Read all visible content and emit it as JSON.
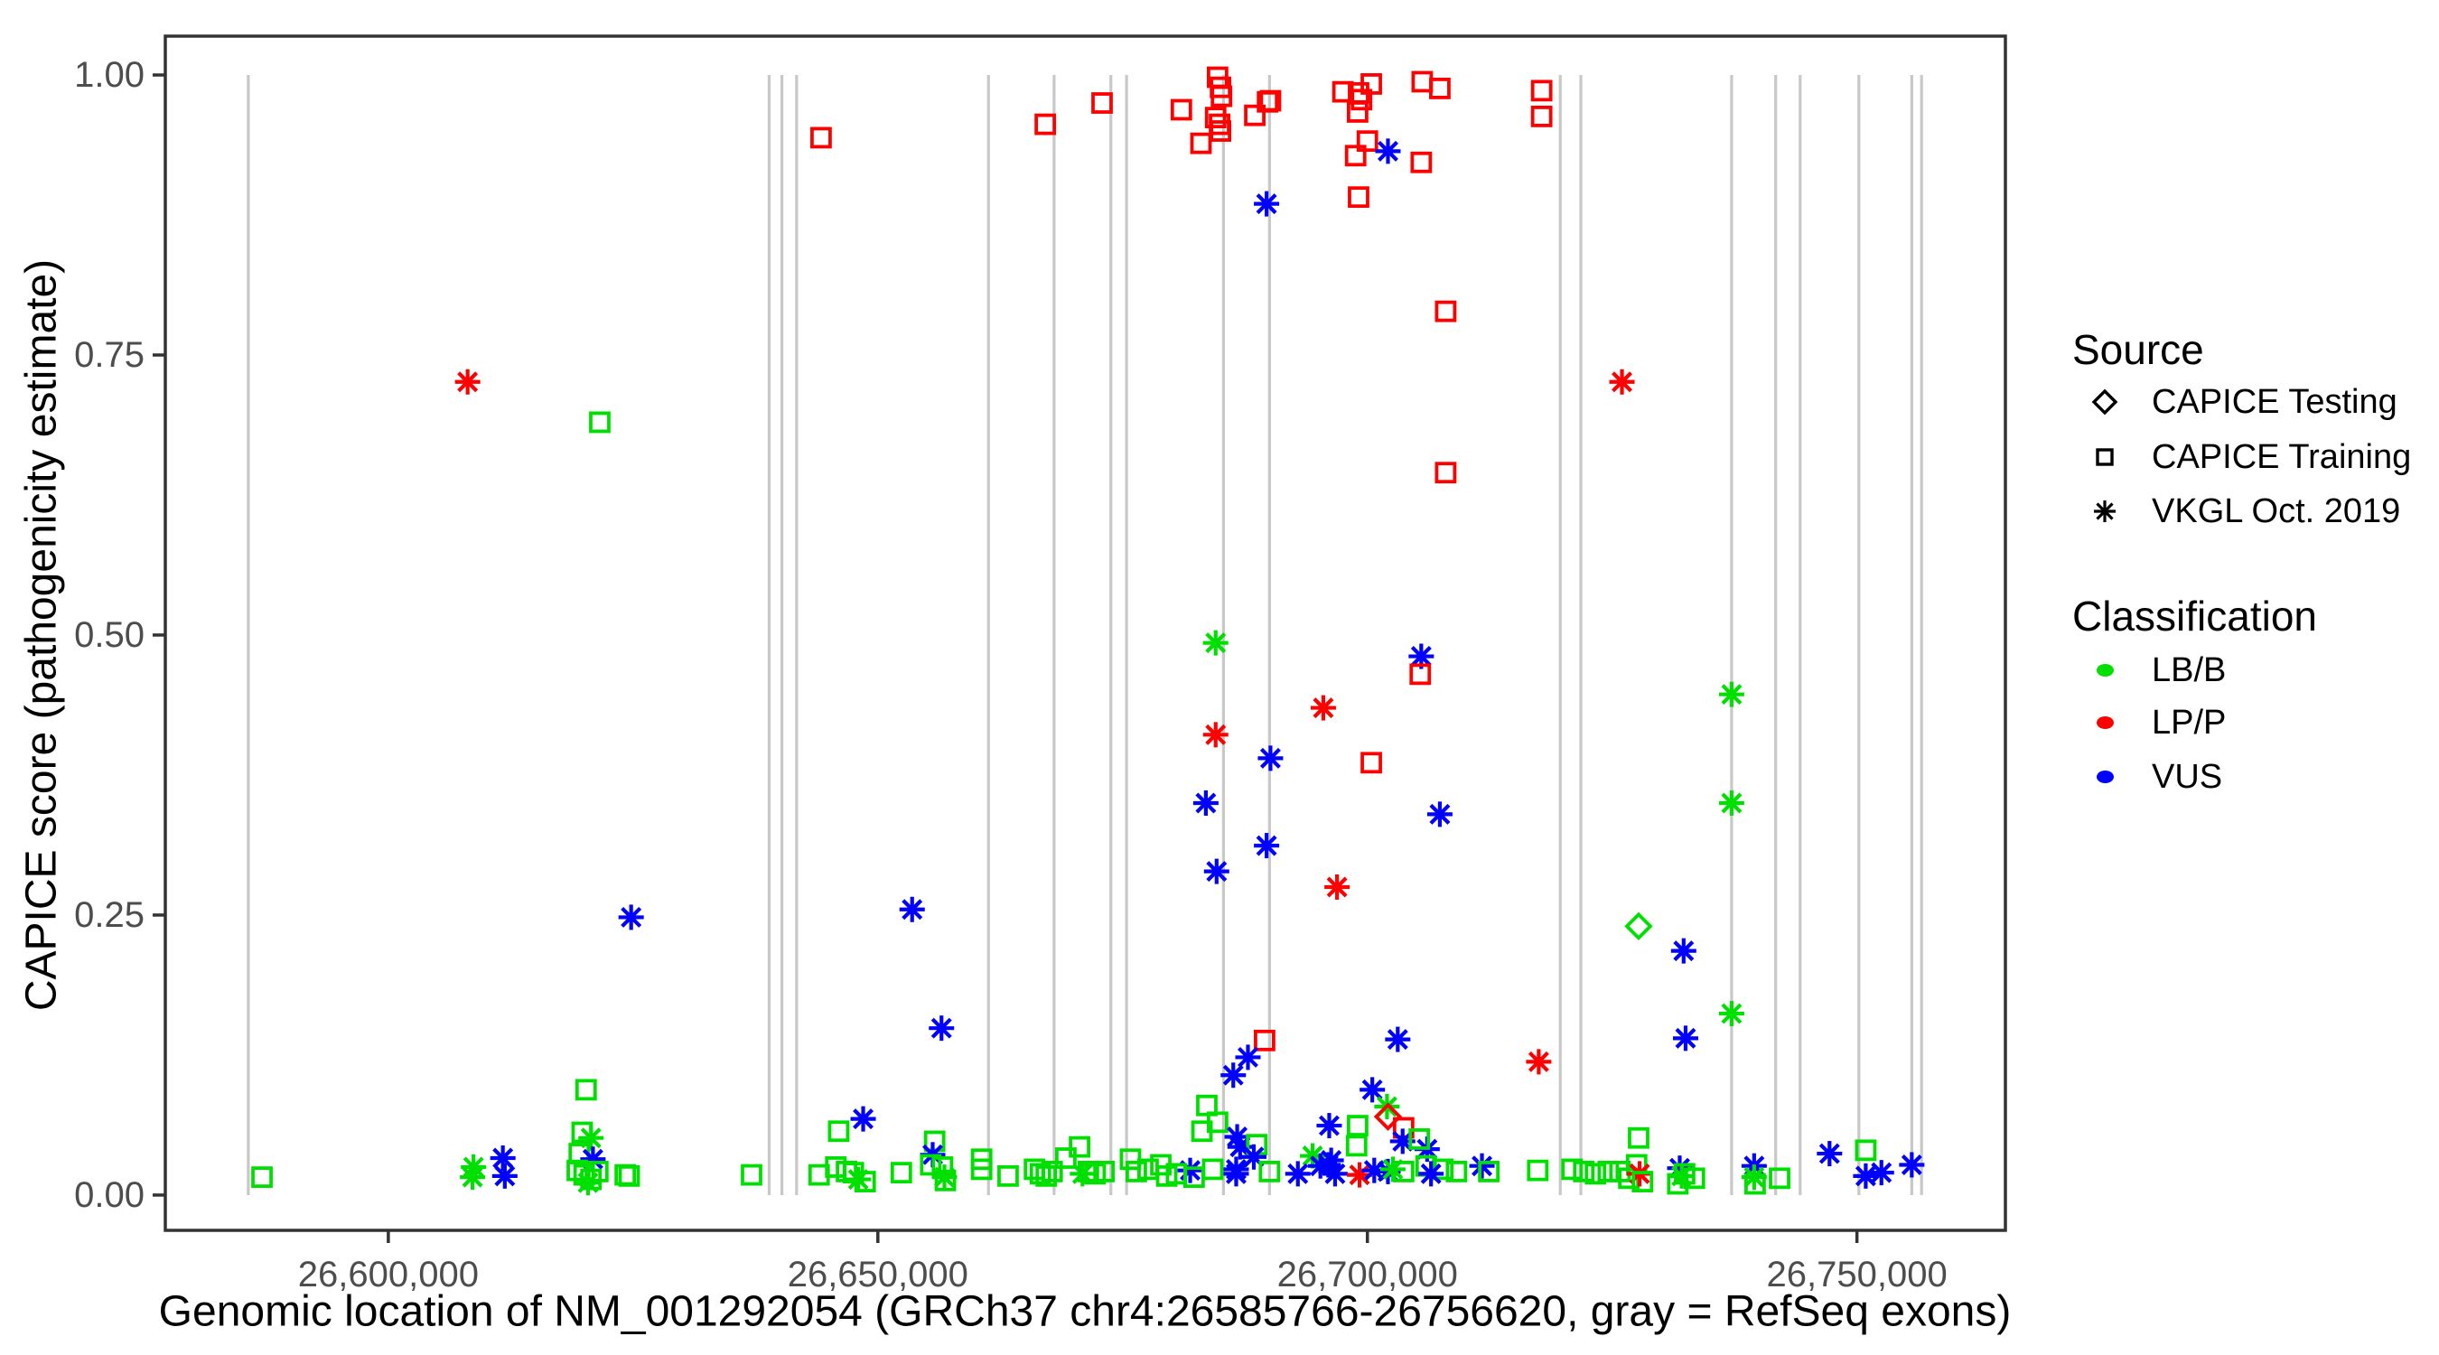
{
  "chart_data": {
    "type": "scatter",
    "xlabel": "Genomic location of NM_001292054 (GRCh37 chr4:26585766-26756620, gray = RefSeq exons)",
    "ylabel": "CAPICE score (pathogenicity estimate)",
    "x_domain": [
      26577223,
      26765163
    ],
    "y_domain": [
      -0.0315,
      1.0347
    ],
    "grid": false,
    "x_ticks": [
      {
        "v": 26600000,
        "label": "26,600,000"
      },
      {
        "v": 26650000,
        "label": "26,650,000"
      },
      {
        "v": 26700000,
        "label": "26,700,000"
      },
      {
        "v": 26750000,
        "label": "26,750,000"
      }
    ],
    "y_ticks": [
      {
        "v": 0.0,
        "label": "0.00"
      },
      {
        "v": 0.25,
        "label": "0.25"
      },
      {
        "v": 0.5,
        "label": "0.50"
      },
      {
        "v": 0.75,
        "label": "0.75"
      },
      {
        "v": 1.0,
        "label": "1.00"
      }
    ],
    "exon_color": "#c8c8c8",
    "exons": [
      26585700,
      26638900,
      26640200,
      26641700,
      26661300,
      26668000,
      26673800,
      26675400,
      26685300,
      26690000,
      26719700,
      26721800,
      26737200,
      26741700,
      26744200,
      26750200,
      26755600,
      26756600
    ],
    "legend": {
      "source": {
        "title": "Source",
        "items": [
          {
            "label": "CAPICE Testing",
            "marker": "diamond"
          },
          {
            "label": "CAPICE Training",
            "marker": "square"
          },
          {
            "label": "VKGL Oct. 2019",
            "marker": "asterisk"
          }
        ]
      },
      "classification": {
        "title": "Classification",
        "items": [
          {
            "label": "LB/B",
            "color": "#00e000"
          },
          {
            "label": "LP/P",
            "color": "#ff0000"
          },
          {
            "label": "VUS",
            "color": "#0000ff"
          }
        ]
      }
    },
    "colors": {
      "g": "#00e000",
      "r": "#ff0000",
      "b": "#0000ff"
    },
    "marker_codes": {
      "s": "CAPICE Training (square)",
      "a": "VKGL Oct. 2019 (asterisk)",
      "d": "CAPICE Testing (diamond)"
    },
    "class_codes": {
      "g": "LB/B",
      "r": "LP/P",
      "b": "VUS"
    },
    "points": [
      [
        26608100,
        0.726,
        "a",
        "r"
      ],
      [
        26621600,
        0.69,
        "s",
        "g"
      ],
      [
        26644200,
        0.944,
        "s",
        "r"
      ],
      [
        26667100,
        0.956,
        "s",
        "r"
      ],
      [
        26672900,
        0.975,
        "s",
        "r"
      ],
      [
        26681000,
        0.969,
        "s",
        "r"
      ],
      [
        26683000,
        0.939,
        "s",
        "r"
      ],
      [
        26684700,
        0.998,
        "s",
        "r"
      ],
      [
        26685000,
        0.989,
        "s",
        "r"
      ],
      [
        26685100,
        0.981,
        "s",
        "r"
      ],
      [
        26684500,
        0.962,
        "s",
        "r"
      ],
      [
        26684900,
        0.956,
        "s",
        "r"
      ],
      [
        26685000,
        0.95,
        "s",
        "r"
      ],
      [
        26688500,
        0.964,
        "s",
        "r"
      ],
      [
        26689800,
        0.976,
        "s",
        "r"
      ],
      [
        26690100,
        0.977,
        "s",
        "r"
      ],
      [
        26697500,
        0.985,
        "s",
        "r"
      ],
      [
        26699100,
        0.984,
        "s",
        "r"
      ],
      [
        26700400,
        0.992,
        "s",
        "r"
      ],
      [
        26699400,
        0.978,
        "s",
        "r"
      ],
      [
        26699000,
        0.967,
        "s",
        "r"
      ],
      [
        26705600,
        0.994,
        "s",
        "r"
      ],
      [
        26707400,
        0.988,
        "s",
        "r"
      ],
      [
        26717800,
        0.986,
        "s",
        "r"
      ],
      [
        26717800,
        0.963,
        "s",
        "r"
      ],
      [
        26700000,
        0.941,
        "s",
        "r"
      ],
      [
        26698800,
        0.928,
        "s",
        "r"
      ],
      [
        26702100,
        0.932,
        "a",
        "b"
      ],
      [
        26705500,
        0.922,
        "s",
        "r"
      ],
      [
        26699100,
        0.891,
        "s",
        "r"
      ],
      [
        26689700,
        0.885,
        "a",
        "b"
      ],
      [
        26708000,
        0.789,
        "s",
        "r"
      ],
      [
        26708000,
        0.645,
        "s",
        "r"
      ],
      [
        26726000,
        0.726,
        "a",
        "r"
      ],
      [
        26684500,
        0.493,
        "a",
        "g"
      ],
      [
        26705500,
        0.481,
        "a",
        "b"
      ],
      [
        26705400,
        0.465,
        "s",
        "r"
      ],
      [
        26695500,
        0.435,
        "a",
        "r"
      ],
      [
        26684500,
        0.411,
        "a",
        "r"
      ],
      [
        26690100,
        0.39,
        "a",
        "b"
      ],
      [
        26700400,
        0.386,
        "s",
        "r"
      ],
      [
        26683500,
        0.35,
        "a",
        "b"
      ],
      [
        26707400,
        0.34,
        "a",
        "b"
      ],
      [
        26689700,
        0.312,
        "a",
        "b"
      ],
      [
        26684600,
        0.289,
        "a",
        "b"
      ],
      [
        26696900,
        0.275,
        "a",
        "r"
      ],
      [
        26737200,
        0.447,
        "a",
        "g"
      ],
      [
        26737200,
        0.35,
        "a",
        "g"
      ],
      [
        26727700,
        0.24,
        "d",
        "g"
      ],
      [
        26732300,
        0.218,
        "a",
        "b"
      ],
      [
        26737200,
        0.162,
        "a",
        "g"
      ],
      [
        26732500,
        0.14,
        "a",
        "b"
      ],
      [
        26624800,
        0.248,
        "a",
        "b"
      ],
      [
        26653500,
        0.255,
        "a",
        "b"
      ],
      [
        26656500,
        0.149,
        "a",
        "b"
      ],
      [
        26620200,
        0.094,
        "s",
        "g"
      ],
      [
        26648500,
        0.068,
        "a",
        "b"
      ],
      [
        26646000,
        0.057,
        "s",
        "g"
      ],
      [
        26689500,
        0.138,
        "s",
        "r"
      ],
      [
        26687800,
        0.123,
        "a",
        "b"
      ],
      [
        26686300,
        0.107,
        "a",
        "b"
      ],
      [
        26703100,
        0.139,
        "a",
        "b"
      ],
      [
        26717500,
        0.119,
        "a",
        "r"
      ],
      [
        26700500,
        0.094,
        "a",
        "b"
      ],
      [
        26702000,
        0.079,
        "a",
        "g"
      ],
      [
        26702100,
        0.07,
        "d",
        "r"
      ],
      [
        26703700,
        0.06,
        "s",
        "r"
      ],
      [
        26703600,
        0.048,
        "a",
        "b"
      ],
      [
        26706100,
        0.041,
        "a",
        "b"
      ],
      [
        26705300,
        0.05,
        "s",
        "g"
      ],
      [
        26699000,
        0.062,
        "s",
        "g"
      ],
      [
        26698900,
        0.044,
        "s",
        "g"
      ],
      [
        26696100,
        0.062,
        "a",
        "b"
      ],
      [
        26694400,
        0.035,
        "a",
        "g"
      ],
      [
        26696300,
        0.031,
        "a",
        "b"
      ],
      [
        26683600,
        0.08,
        "s",
        "g"
      ],
      [
        26684700,
        0.065,
        "s",
        "g"
      ],
      [
        26683100,
        0.057,
        "s",
        "g"
      ],
      [
        26686700,
        0.052,
        "a",
        "b"
      ],
      [
        26687000,
        0.043,
        "a",
        "b"
      ],
      [
        26688700,
        0.045,
        "s",
        "g"
      ],
      [
        26688400,
        0.034,
        "a",
        "b"
      ],
      [
        26686600,
        0.023,
        "a",
        "b"
      ],
      [
        26587100,
        0.016,
        "s",
        "g"
      ],
      [
        26608700,
        0.025,
        "a",
        "g"
      ],
      [
        26608600,
        0.016,
        "a",
        "g"
      ],
      [
        26611700,
        0.033,
        "a",
        "b"
      ],
      [
        26611900,
        0.017,
        "a",
        "b"
      ],
      [
        26619800,
        0.056,
        "s",
        "g"
      ],
      [
        26620700,
        0.051,
        "a",
        "g"
      ],
      [
        26619500,
        0.037,
        "s",
        "g"
      ],
      [
        26620900,
        0.032,
        "a",
        "b"
      ],
      [
        26619300,
        0.022,
        "s",
        "g"
      ],
      [
        26620000,
        0.018,
        "s",
        "g"
      ],
      [
        26620700,
        0.014,
        "s",
        "g"
      ],
      [
        26620400,
        0.011,
        "a",
        "g"
      ],
      [
        26621400,
        0.021,
        "s",
        "g"
      ],
      [
        26624200,
        0.018,
        "s",
        "g"
      ],
      [
        26624600,
        0.017,
        "s",
        "g"
      ],
      [
        26637100,
        0.018,
        "s",
        "g"
      ],
      [
        26644000,
        0.018,
        "s",
        "g"
      ],
      [
        26645700,
        0.025,
        "s",
        "g"
      ],
      [
        26646800,
        0.021,
        "s",
        "g"
      ],
      [
        26647500,
        0.02,
        "s",
        "g"
      ],
      [
        26648000,
        0.014,
        "a",
        "g"
      ],
      [
        26648700,
        0.012,
        "s",
        "g"
      ],
      [
        26652400,
        0.02,
        "s",
        "g"
      ],
      [
        26655800,
        0.048,
        "s",
        "g"
      ],
      [
        26655600,
        0.036,
        "a",
        "b"
      ],
      [
        26655400,
        0.027,
        "s",
        "g"
      ],
      [
        26656600,
        0.025,
        "s",
        "g"
      ],
      [
        26656800,
        0.016,
        "a",
        "g"
      ],
      [
        26656900,
        0.013,
        "s",
        "g"
      ],
      [
        26660600,
        0.032,
        "s",
        "g"
      ],
      [
        26660600,
        0.023,
        "s",
        "g"
      ],
      [
        26663300,
        0.017,
        "s",
        "g"
      ],
      [
        26666000,
        0.023,
        "s",
        "g"
      ],
      [
        26666600,
        0.019,
        "s",
        "g"
      ],
      [
        26667200,
        0.017,
        "s",
        "g"
      ],
      [
        26667800,
        0.021,
        "s",
        "g"
      ],
      [
        26669200,
        0.033,
        "s",
        "g"
      ],
      [
        26670600,
        0.043,
        "s",
        "g"
      ],
      [
        26670900,
        0.019,
        "a",
        "g"
      ],
      [
        26671500,
        0.021,
        "s",
        "g"
      ],
      [
        26672200,
        0.019,
        "s",
        "g"
      ],
      [
        26673100,
        0.021,
        "s",
        "g"
      ],
      [
        26675800,
        0.032,
        "s",
        "g"
      ],
      [
        26676400,
        0.021,
        "s",
        "g"
      ],
      [
        26677600,
        0.023,
        "s",
        "g"
      ],
      [
        26678900,
        0.027,
        "s",
        "g"
      ],
      [
        26679500,
        0.017,
        "s",
        "g"
      ],
      [
        26681900,
        0.022,
        "a",
        "b"
      ],
      [
        26680500,
        0.019,
        "s",
        "g"
      ],
      [
        26682300,
        0.016,
        "s",
        "g"
      ],
      [
        26684200,
        0.023,
        "s",
        "g"
      ],
      [
        26686600,
        0.019,
        "a",
        "b"
      ],
      [
        26690000,
        0.021,
        "s",
        "g"
      ],
      [
        26692900,
        0.019,
        "a",
        "b"
      ],
      [
        26695200,
        0.026,
        "a",
        "b"
      ],
      [
        26696000,
        0.027,
        "a",
        "b"
      ],
      [
        26696700,
        0.019,
        "a",
        "b"
      ],
      [
        26699200,
        0.018,
        "a",
        "r"
      ],
      [
        26700700,
        0.022,
        "a",
        "b"
      ],
      [
        26702100,
        0.021,
        "a",
        "b"
      ],
      [
        26702600,
        0.023,
        "a",
        "g"
      ],
      [
        26703700,
        0.021,
        "s",
        "g"
      ],
      [
        26706000,
        0.026,
        "s",
        "g"
      ],
      [
        26707700,
        0.023,
        "s",
        "g"
      ],
      [
        26706500,
        0.019,
        "a",
        "b"
      ],
      [
        26709100,
        0.021,
        "s",
        "g"
      ],
      [
        26711700,
        0.026,
        "a",
        "b"
      ],
      [
        26712400,
        0.021,
        "s",
        "g"
      ],
      [
        26717400,
        0.022,
        "s",
        "g"
      ],
      [
        26720900,
        0.023,
        "s",
        "g"
      ],
      [
        26722100,
        0.021,
        "s",
        "g"
      ],
      [
        26723300,
        0.019,
        "s",
        "g"
      ],
      [
        26724600,
        0.021,
        "s",
        "g"
      ],
      [
        26725800,
        0.021,
        "s",
        "g"
      ],
      [
        26726700,
        0.015,
        "s",
        "g"
      ],
      [
        26727700,
        0.051,
        "s",
        "g"
      ],
      [
        26727500,
        0.027,
        "s",
        "g"
      ],
      [
        26727800,
        0.019,
        "a",
        "r"
      ],
      [
        26728100,
        0.012,
        "s",
        "g"
      ],
      [
        26731900,
        0.024,
        "a",
        "b"
      ],
      [
        26732100,
        0.017,
        "a",
        "g"
      ],
      [
        26732400,
        0.019,
        "s",
        "g"
      ],
      [
        26733400,
        0.015,
        "s",
        "g"
      ],
      [
        26731700,
        0.01,
        "s",
        "g"
      ],
      [
        26739500,
        0.026,
        "a",
        "b"
      ],
      [
        26739500,
        0.016,
        "a",
        "g"
      ],
      [
        26739600,
        0.01,
        "s",
        "g"
      ],
      [
        26742100,
        0.015,
        "s",
        "g"
      ],
      [
        26747200,
        0.037,
        "a",
        "b"
      ],
      [
        26750900,
        0.04,
        "s",
        "g"
      ],
      [
        26750900,
        0.017,
        "a",
        "b"
      ],
      [
        26752500,
        0.02,
        "a",
        "b"
      ],
      [
        26755600,
        0.027,
        "a",
        "b"
      ]
    ]
  }
}
